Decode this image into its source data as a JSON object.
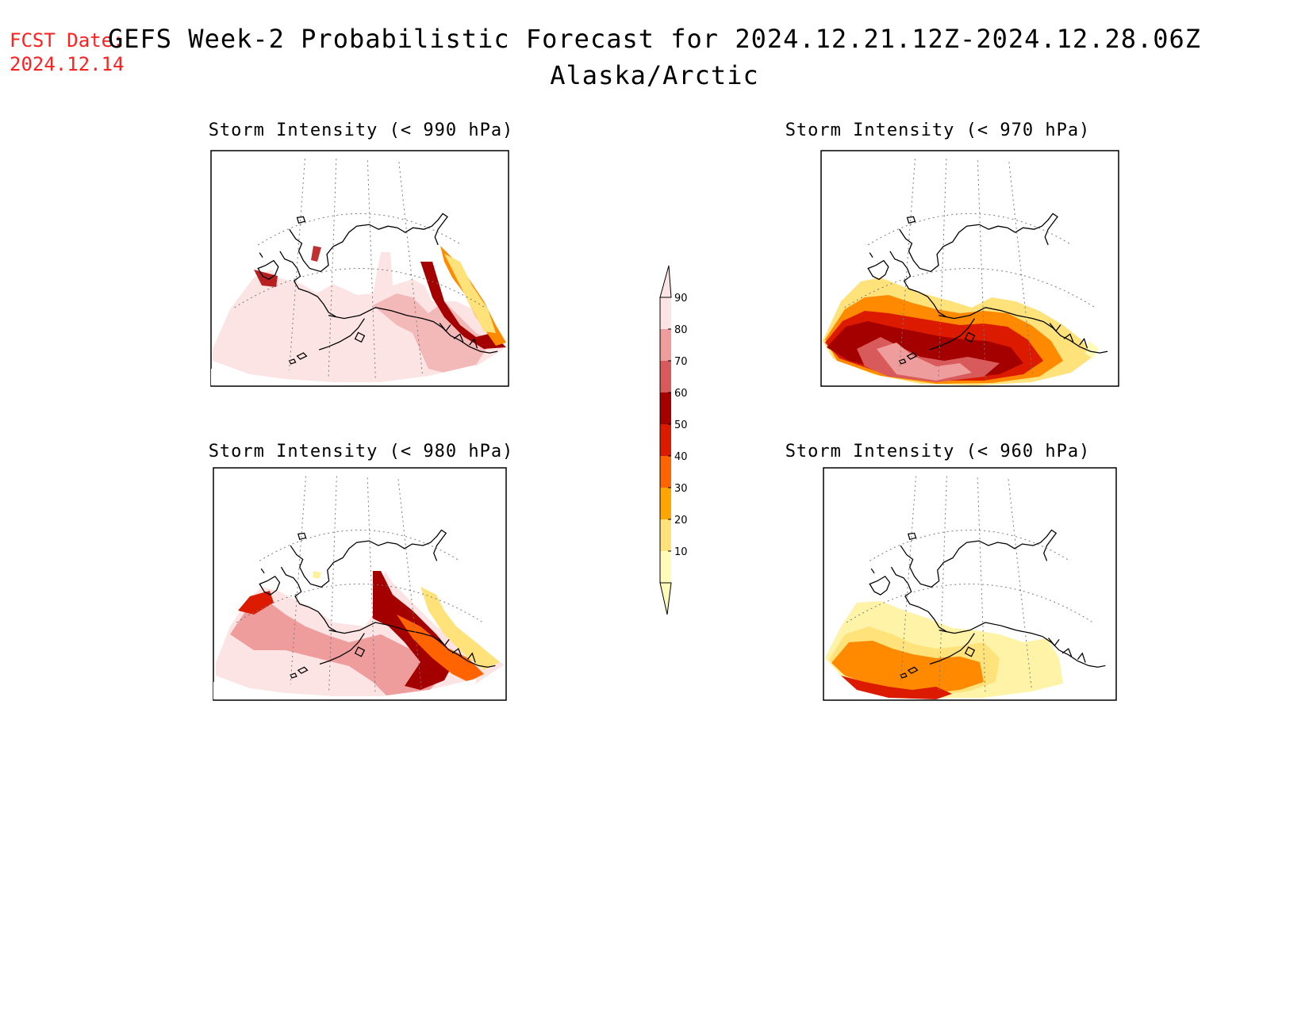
{
  "fcst_date": {
    "label": "FCST Date:",
    "value": "2024.12.14"
  },
  "title": {
    "line1": "GEFS Week-2 Probabilistic Forecast for 2024.12.21.12Z-2024.12.28.06Z",
    "line2": "Alaska/Arctic"
  },
  "panels": [
    {
      "title": "Storm Intensity (< 990 hPa)"
    },
    {
      "title": "Storm Intensity (< 970 hPa)"
    },
    {
      "title": "Storm Intensity (< 980 hPa)"
    },
    {
      "title": "Storm Intensity (< 960 hPa)"
    }
  ],
  "colorbar": {
    "ticks": [
      "10",
      "20",
      "30",
      "40",
      "50",
      "60",
      "70",
      "80",
      "90"
    ],
    "colors": [
      "#fffbb8",
      "#ffe27a",
      "#ffa500",
      "#ff6400",
      "#dc1a00",
      "#a50000",
      "#d85a5a",
      "#ee9c9c",
      "#fde4e4"
    ]
  }
}
